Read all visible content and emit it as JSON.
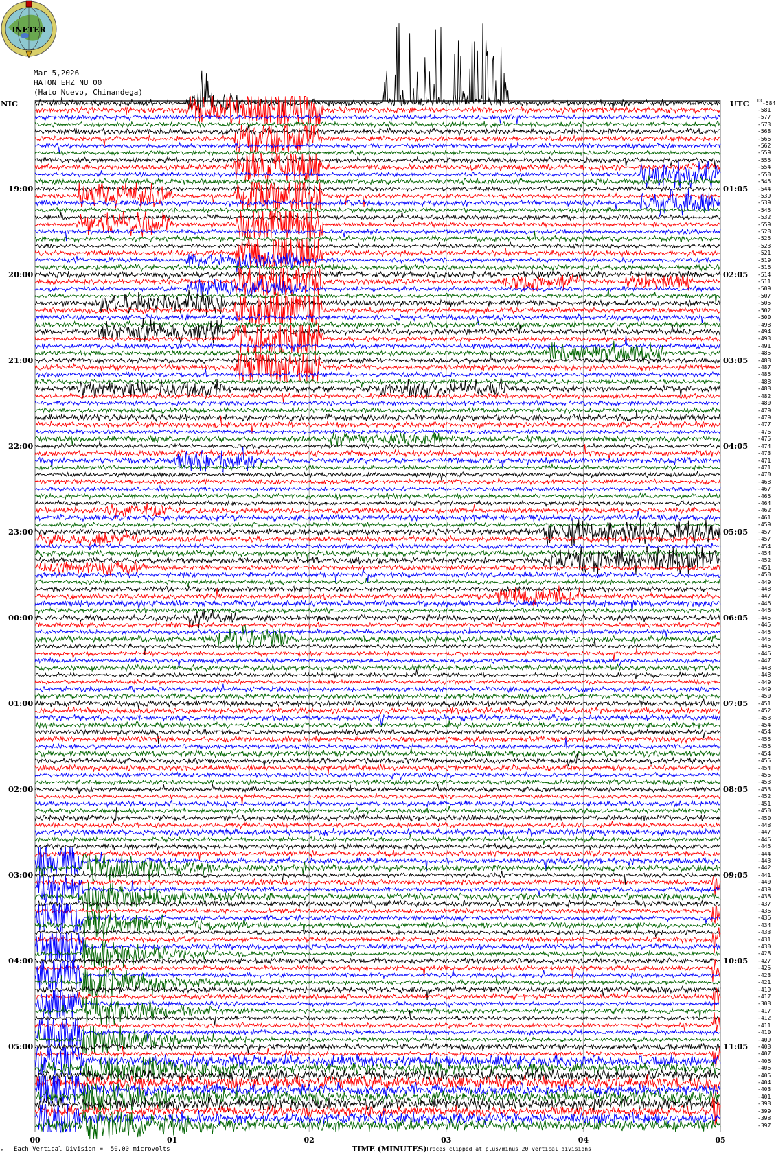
{
  "logo": {
    "text": "INETER"
  },
  "header": {
    "date": "Mar 5,2026",
    "station": "HATON EHZ NU 00",
    "location": "(Hato Nuevo, Chinandega)"
  },
  "left_axis": {
    "zone": "NIC",
    "labels": [
      "19:00",
      "20:00",
      "21:00",
      "22:00",
      "23:00",
      "00:00",
      "01:00",
      "02:00",
      "03:00",
      "04:00",
      "05:00"
    ]
  },
  "right_axis": {
    "zone": "UTC",
    "labels": [
      "01:05",
      "02:05",
      "03:05",
      "04:05",
      "05:05",
      "06:05",
      "07:05",
      "08:05",
      "09:05",
      "10:05",
      "11:05"
    ],
    "offset_header": "DC"
  },
  "footer": {
    "scale_text": "Each Vertical Division =  50.00 microvolts",
    "axis_title": "TIME (MINUTES)",
    "clip_text": "Traces clipped at plus/minus 20 vertical divisions",
    "minute_labels": [
      "00",
      "01",
      "02",
      "03",
      "04",
      "05"
    ]
  },
  "chart_data": {
    "type": "line",
    "subtype": "helicorder",
    "xlabel": "TIME (MINUTES)",
    "xlim": [
      0,
      5
    ],
    "trace_count": 144,
    "trace_colors": [
      "#000000",
      "#ff0000",
      "#0000ff",
      "#006400"
    ],
    "clip_divisions": 20,
    "division_microvolts": 50.0,
    "grid": "vertical lines each minute",
    "offsets": [
      "-584",
      "-581",
      "-577",
      "-573",
      "-568",
      "-566",
      "-562",
      "-559",
      "-555",
      "-554",
      "-550",
      "-545",
      "-544",
      "-539",
      "-539",
      "-545",
      "-532",
      "-559",
      "-528",
      "-525",
      "-523",
      "-521",
      "-519",
      "-516",
      "-514",
      "-511",
      "-509",
      "-507",
      "-505",
      "-502",
      "-500",
      "-498",
      "-494",
      "-493",
      "-491",
      "-485",
      "-488",
      "-487",
      "-485",
      "-488",
      "-488",
      "-482",
      "-480",
      "-479",
      "-479",
      "-477",
      "-476",
      "-475",
      "-474",
      "-473",
      "-471",
      "-471",
      "-470",
      "-468",
      "-467",
      "-465",
      "-464",
      "-462",
      "-461",
      "-459",
      "-457",
      "-457",
      "-454",
      "-454",
      "-452",
      "-451",
      "-450",
      "-449",
      "-448",
      "-447",
      "-446",
      "-446",
      "-445",
      "-445",
      "-445",
      "-445",
      "-446",
      "-446",
      "-447",
      "-448",
      "-448",
      "-449",
      "-449",
      "-450",
      "-451",
      "-452",
      "-453",
      "-454",
      "-454",
      "-455",
      "-455",
      "-454",
      "-455",
      "-454",
      "-455",
      "-453",
      "-453",
      "-452",
      "-451",
      "-450",
      "-450",
      "-448",
      "-447",
      "-446",
      "-445",
      "-444",
      "-443",
      "-442",
      "-441",
      "-440",
      "-439",
      "-438",
      "-437",
      "-436",
      "-436",
      "-434",
      "-433",
      "-431",
      "-430",
      "-428",
      "-427",
      "-425",
      "-423",
      "-421",
      "-419",
      "-417",
      "-308",
      "-417",
      "-412",
      "-411",
      "-410",
      "-409",
      "-408",
      "-407",
      "-406",
      "-406",
      "-405",
      "-404",
      "-403",
      "-401",
      "-398",
      "-399",
      "-398",
      "-397"
    ],
    "events": [
      {
        "traces": [
          0,
          1
        ],
        "t": [
          1.1,
          1.5
        ],
        "amp": 9
      },
      {
        "traces": [
          0,
          0
        ],
        "t": [
          2.5,
          3.45
        ],
        "amp": 120,
        "spikes": true
      },
      {
        "traces": [
          0,
          0
        ],
        "t": [
          1.1,
          1.3
        ],
        "amp": 60,
        "spikes": true
      },
      {
        "traces": [
          1,
          40
        ],
        "t": [
          1.45,
          2.1
        ],
        "amp": 20,
        "color": 1
      },
      {
        "traces": [
          12,
          20
        ],
        "t": [
          0.3,
          1.0
        ],
        "amp": 8,
        "color": 1
      },
      {
        "traces": [
          28,
          35
        ],
        "t": [
          0.45,
          1.4
        ],
        "amp": 6,
        "color": 0
      },
      {
        "traces": [
          10,
          16
        ],
        "t": [
          4.4,
          5.0
        ],
        "amp": 9,
        "color": 2
      },
      {
        "traces": [
          20,
          26
        ],
        "t": [
          1.1,
          2.0
        ],
        "amp": 6,
        "color": 2
      },
      {
        "traces": [
          24,
          26
        ],
        "t": [
          3.4,
          4.0
        ],
        "amp": 5,
        "color": 1
      },
      {
        "traces": [
          24,
          26
        ],
        "t": [
          4.3,
          4.8
        ],
        "amp": 5,
        "color": 1
      },
      {
        "traces": [
          33,
          35
        ],
        "t": [
          3.7,
          4.6
        ],
        "amp": 6,
        "color": 3
      },
      {
        "traces": [
          39,
          40
        ],
        "t": [
          0.3,
          1.4
        ],
        "amp": 4,
        "color": 0
      },
      {
        "traces": [
          39,
          40
        ],
        "t": [
          2.5,
          3.5
        ],
        "amp": 4,
        "color": 0
      },
      {
        "traces": [
          47,
          47
        ],
        "t": [
          2.1,
          3.0
        ],
        "amp": 3
      },
      {
        "traces": [
          50,
          50
        ],
        "t": [
          1.0,
          1.6
        ],
        "amp": 6
      },
      {
        "traces": [
          57,
          57
        ],
        "t": [
          0.5,
          1.0
        ],
        "amp": 3
      },
      {
        "traces": [
          60,
          64
        ],
        "t": [
          3.7,
          5.0
        ],
        "amp": 7,
        "color": 0
      },
      {
        "traces": [
          61,
          61
        ],
        "t": [
          0.0,
          0.8
        ],
        "amp": 3
      },
      {
        "traces": [
          65,
          65
        ],
        "t": [
          0.0,
          0.8
        ],
        "amp": 4
      },
      {
        "traces": [
          69,
          69
        ],
        "t": [
          3.35,
          4.0
        ],
        "amp": 6
      },
      {
        "traces": [
          72,
          72
        ],
        "t": [
          1.1,
          1.5
        ],
        "amp": 4
      },
      {
        "traces": [
          75,
          75
        ],
        "t": [
          1.3,
          1.85
        ],
        "amp": 8
      },
      {
        "traces": [
          105,
          143
        ],
        "t": [
          0.0,
          0.35
        ],
        "amp": 20,
        "color": 2
      },
      {
        "traces": [
          106,
          143
        ],
        "t": [
          0.35,
          1.6
        ],
        "amp": 20,
        "color": 3,
        "decay": true
      },
      {
        "traces": [
          106,
          143
        ],
        "t": [
          4.93,
          5.0
        ],
        "amp": 20,
        "color": 1
      },
      {
        "traces": [
          134,
          143
        ],
        "t": [
          0.0,
          5.0
        ],
        "amp": 2.5
      }
    ]
  }
}
